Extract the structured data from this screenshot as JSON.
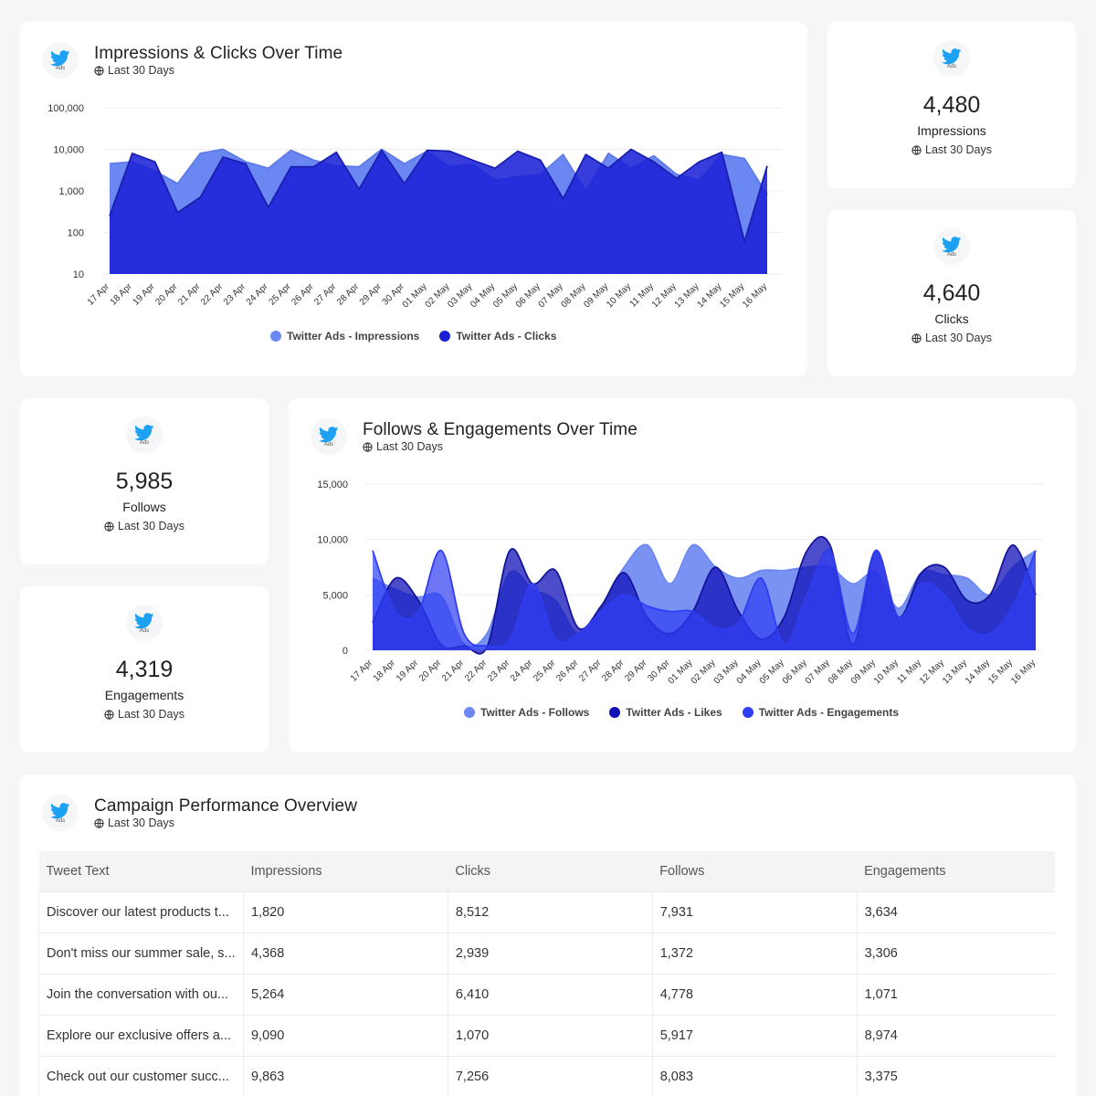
{
  "period": "Last 30 Days",
  "icon_badge": "Ads",
  "colors": {
    "impressions": "#6b87f2",
    "clicks": "#1b22d6",
    "follows": "#6b87f2",
    "likes": "#1111b8",
    "engagements": "#2f3df2"
  },
  "impressions_chart": {
    "title": "Impressions & Clicks Over Time",
    "subtitle": "Last 30 Days"
  },
  "follows_chart": {
    "title": "Follows & Engagements Over Time",
    "subtitle": "Last 30 Days"
  },
  "kpis": {
    "impressions": {
      "value": "4,480",
      "label": "Impressions",
      "period": "Last 30 Days"
    },
    "clicks": {
      "value": "4,640",
      "label": "Clicks",
      "period": "Last 30 Days"
    },
    "follows": {
      "value": "5,985",
      "label": "Follows",
      "period": "Last 30 Days"
    },
    "engagements": {
      "value": "4,319",
      "label": "Engagements",
      "period": "Last 30 Days"
    }
  },
  "chart_data": [
    {
      "type": "area",
      "scale": "log",
      "ylim": [
        10,
        100000
      ],
      "y_ticks": [
        10,
        100,
        1000,
        10000,
        100000
      ],
      "y_tick_labels": [
        "10",
        "100",
        "1,000",
        "10,000",
        "100,000"
      ],
      "categories": [
        "17 Apr",
        "18 Apr",
        "19 Apr",
        "20 Apr",
        "21 Apr",
        "22 Apr",
        "23 Apr",
        "24 Apr",
        "25 Apr",
        "26 Apr",
        "27 Apr",
        "28 Apr",
        "29 Apr",
        "30 Apr",
        "01 May",
        "02 May",
        "03 May",
        "04 May",
        "05 May",
        "06 May",
        "07 May",
        "08 May",
        "09 May",
        "10 May",
        "11 May",
        "12 May",
        "13 May",
        "14 May",
        "15 May",
        "16 May"
      ],
      "series": [
        {
          "name": "Twitter Ads - Impressions",
          "values": [
            4500,
            5000,
            3000,
            1500,
            8000,
            10000,
            5000,
            3500,
            9500,
            5500,
            4000,
            3800,
            10000,
            4500,
            9000,
            3800,
            4500,
            1800,
            2200,
            2500,
            7500,
            1000,
            8000,
            3500,
            7000,
            2500,
            1800,
            7500,
            6000,
            800
          ]
        },
        {
          "name": "Twitter Ads - Clicks",
          "values": [
            250,
            8000,
            5000,
            300,
            700,
            6500,
            4500,
            400,
            3800,
            3800,
            8500,
            1100,
            9500,
            1500,
            9500,
            9000,
            5500,
            3500,
            9000,
            5500,
            650,
            7500,
            3500,
            10000,
            5000,
            2000,
            5000,
            8500,
            60,
            4000
          ]
        }
      ],
      "legend": "bottom"
    },
    {
      "type": "area",
      "ylim": [
        0,
        15000
      ],
      "y_ticks": [
        0,
        5000,
        10000,
        15000
      ],
      "y_tick_labels": [
        "0",
        "5,000",
        "10,000",
        "15,000"
      ],
      "categories": [
        "17 Apr",
        "18 Apr",
        "19 Apr",
        "20 Apr",
        "21 Apr",
        "22 Apr",
        "23 Apr",
        "24 Apr",
        "25 Apr",
        "26 Apr",
        "27 Apr",
        "28 Apr",
        "29 Apr",
        "30 Apr",
        "01 May",
        "02 May",
        "03 May",
        "04 May",
        "05 May",
        "06 May",
        "07 May",
        "08 May",
        "09 May",
        "10 May",
        "11 May",
        "12 May",
        "13 May",
        "14 May",
        "15 May",
        "16 May"
      ],
      "series": [
        {
          "name": "Twitter Ads - Follows",
          "values": [
            6500,
            5500,
            4800,
            4900,
            600,
            1500,
            7000,
            5500,
            4500,
            1500,
            4000,
            7500,
            9500,
            6000,
            9500,
            7500,
            6500,
            7200,
            7200,
            7500,
            7500,
            6000,
            7000,
            3800,
            7000,
            6800,
            6500,
            5000,
            7500,
            9000
          ]
        },
        {
          "name": "Twitter Ads - Likes",
          "values": [
            2500,
            6500,
            4500,
            500,
            400,
            300,
            9000,
            6000,
            7200,
            2000,
            4000,
            7000,
            3000,
            1500,
            3500,
            7500,
            3500,
            1000,
            3000,
            9000,
            9500,
            500,
            9000,
            3000,
            7000,
            7500,
            4500,
            5000,
            9500,
            5000
          ]
        },
        {
          "name": "Twitter Ads - Engagements",
          "values": [
            9000,
            3500,
            3500,
            9000,
            1500,
            400,
            1000,
            6000,
            1000,
            1500,
            3500,
            5000,
            4000,
            3500,
            3500,
            2000,
            2500,
            6500,
            500,
            5000,
            9000,
            1500,
            9000,
            3000,
            6000,
            5000,
            2000,
            1500,
            4000,
            9000
          ]
        }
      ],
      "legend": "bottom"
    }
  ],
  "campaign": {
    "title": "Campaign Performance Overview",
    "subtitle": "Last 30 Days",
    "columns": [
      "Tweet Text",
      "Impressions",
      "Clicks",
      "Follows",
      "Engagements"
    ],
    "rows": [
      [
        "Discover our latest products t...",
        "1,820",
        "8,512",
        "7,931",
        "3,634"
      ],
      [
        "Don't miss our summer sale, s...",
        "4,368",
        "2,939",
        "1,372",
        "3,306"
      ],
      [
        "Join the conversation with ou...",
        "5,264",
        "6,410",
        "4,778",
        "1,071"
      ],
      [
        "Explore our exclusive offers a...",
        "9,090",
        "1,070",
        "5,917",
        "8,974"
      ],
      [
        "Check out our customer succ...",
        "9,863",
        "7,256",
        "8,083",
        "3,375"
      ]
    ]
  }
}
